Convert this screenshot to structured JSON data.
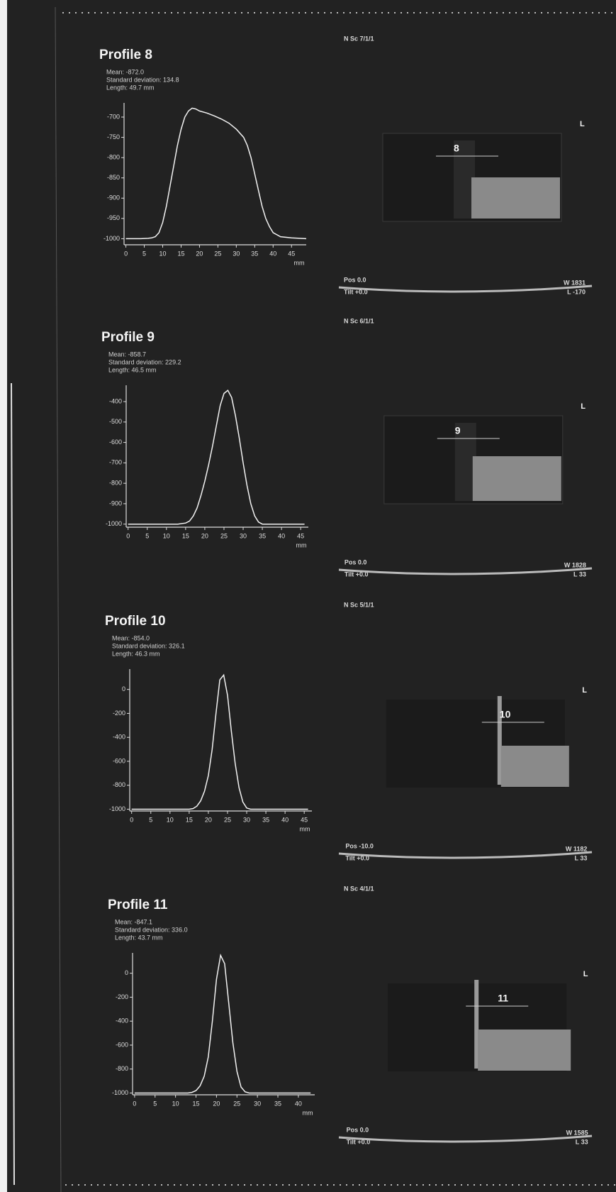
{
  "chart_data": [
    {
      "type": "line",
      "title": "Profile 8",
      "annotations": [
        "Mean: -872.0",
        "Standard deviation: 134.8",
        "Length: 49.7 mm"
      ],
      "x_label": "mm",
      "color": "#f2f2f2",
      "x": [
        0,
        2,
        4,
        6,
        7,
        8,
        9,
        10,
        11,
        12,
        13,
        14,
        15,
        16,
        17,
        18,
        19,
        20,
        22,
        24,
        26,
        28,
        30,
        32,
        33,
        34,
        35,
        36,
        37,
        38,
        39,
        40,
        42,
        45,
        49
      ],
      "values": [
        -1000,
        -1000,
        -1000,
        -999,
        -998,
        -995,
        -985,
        -960,
        -920,
        -870,
        -820,
        -770,
        -730,
        -700,
        -685,
        -678,
        -680,
        -685,
        -690,
        -697,
        -705,
        -715,
        -730,
        -750,
        -770,
        -800,
        -840,
        -880,
        -920,
        -950,
        -970,
        -985,
        -995,
        -998,
        -1000
      ],
      "xlim": [
        -0.5,
        49
      ],
      "xticks": [
        0,
        5,
        10,
        15,
        20,
        25,
        30,
        35,
        40,
        45
      ],
      "ylim": [
        -1015,
        -665
      ],
      "yticks": [
        -700,
        -750,
        -800,
        -850,
        -900,
        -950,
        -1000
      ]
    },
    {
      "type": "line",
      "title": "Profile 9",
      "annotations": [
        "Mean: -858.7",
        "Standard deviation: 229.2",
        "Length: 46.5 mm"
      ],
      "x_label": "mm",
      "color": "#f2f2f2",
      "x": [
        0,
        5,
        10,
        13,
        15,
        16,
        17,
        18,
        19,
        20,
        21,
        22,
        23,
        24,
        25,
        26,
        27,
        28,
        29,
        30,
        31,
        32,
        33,
        34,
        35,
        40,
        46
      ],
      "values": [
        -1000,
        -1000,
        -1000,
        -1000,
        -995,
        -985,
        -960,
        -920,
        -860,
        -790,
        -710,
        -620,
        -520,
        -420,
        -360,
        -345,
        -380,
        -470,
        -580,
        -700,
        -810,
        -900,
        -960,
        -990,
        -1000,
        -1000,
        -1000
      ],
      "xlim": [
        -0.5,
        47
      ],
      "xticks": [
        0,
        5,
        10,
        15,
        20,
        25,
        30,
        35,
        40,
        45
      ],
      "ylim": [
        -1015,
        -320
      ],
      "yticks": [
        -400,
        -500,
        -600,
        -700,
        -800,
        -900,
        -1000
      ]
    },
    {
      "type": "line",
      "title": "Profile 10",
      "annotations": [
        "Mean: -854.0",
        "Standard deviation: 326.1",
        "Length: 46.3 mm"
      ],
      "x_label": "mm",
      "color": "#f2f2f2",
      "x": [
        0,
        5,
        10,
        15,
        16,
        17,
        18,
        19,
        20,
        21,
        22,
        23,
        24,
        25,
        26,
        27,
        28,
        29,
        30,
        31,
        35,
        40,
        46
      ],
      "values": [
        -1000,
        -1000,
        -1000,
        -1000,
        -995,
        -975,
        -930,
        -850,
        -720,
        -500,
        -200,
        80,
        120,
        -50,
        -350,
        -620,
        -820,
        -940,
        -990,
        -1000,
        -1000,
        -1000,
        -1000
      ],
      "xlim": [
        -0.5,
        47
      ],
      "xticks": [
        0,
        5,
        10,
        15,
        20,
        25,
        30,
        35,
        40,
        45
      ],
      "ylim": [
        -1015,
        170
      ],
      "yticks": [
        0,
        -200,
        -400,
        -600,
        -800,
        -1000
      ]
    },
    {
      "type": "line",
      "title": "Profile 11",
      "annotations": [
        "Mean: -847.1",
        "Standard deviation: 336.0",
        "Length: 43.7 mm"
      ],
      "x_label": "mm",
      "color": "#f2f2f2",
      "x": [
        0,
        5,
        10,
        13,
        14,
        15,
        16,
        17,
        18,
        19,
        20,
        21,
        22,
        23,
        24,
        25,
        26,
        27,
        28,
        35,
        43
      ],
      "values": [
        -1000,
        -1000,
        -1000,
        -1000,
        -995,
        -980,
        -940,
        -860,
        -700,
        -400,
        -50,
        150,
        80,
        -250,
        -580,
        -820,
        -950,
        -990,
        -1000,
        -1000,
        -1000
      ],
      "xlim": [
        -0.5,
        44
      ],
      "xticks": [
        0,
        5,
        10,
        15,
        20,
        25,
        30,
        35,
        40
      ],
      "ylim": [
        -1015,
        170
      ],
      "yticks": [
        0,
        -200,
        -400,
        -600,
        -800,
        -1000
      ]
    }
  ],
  "images": [
    {
      "scan": "N Sc 7/1/1",
      "marker": "8",
      "orientation": "L",
      "pos": "Pos 0.0",
      "tilt": "Tilt +0.0",
      "window": "W 1831",
      "level": "L -170"
    },
    {
      "scan": "N Sc 6/1/1",
      "marker": "9",
      "orientation": "L",
      "pos": "Pos 0.0",
      "tilt": "Tilt +0.0",
      "window": "W 1828",
      "level": "L 33"
    },
    {
      "scan": "N Sc 5/1/1",
      "marker": "10",
      "orientation": "L",
      "pos": "Pos -10.0",
      "tilt": "Tilt +0.0",
      "window": "W 1182",
      "level": "L 33"
    },
    {
      "scan": "N Sc 4/1/1",
      "marker": "11",
      "orientation": "L",
      "pos": "Pos 0.0",
      "tilt": "Tilt +0.0",
      "window": "W 1585",
      "level": "L 33"
    }
  ]
}
